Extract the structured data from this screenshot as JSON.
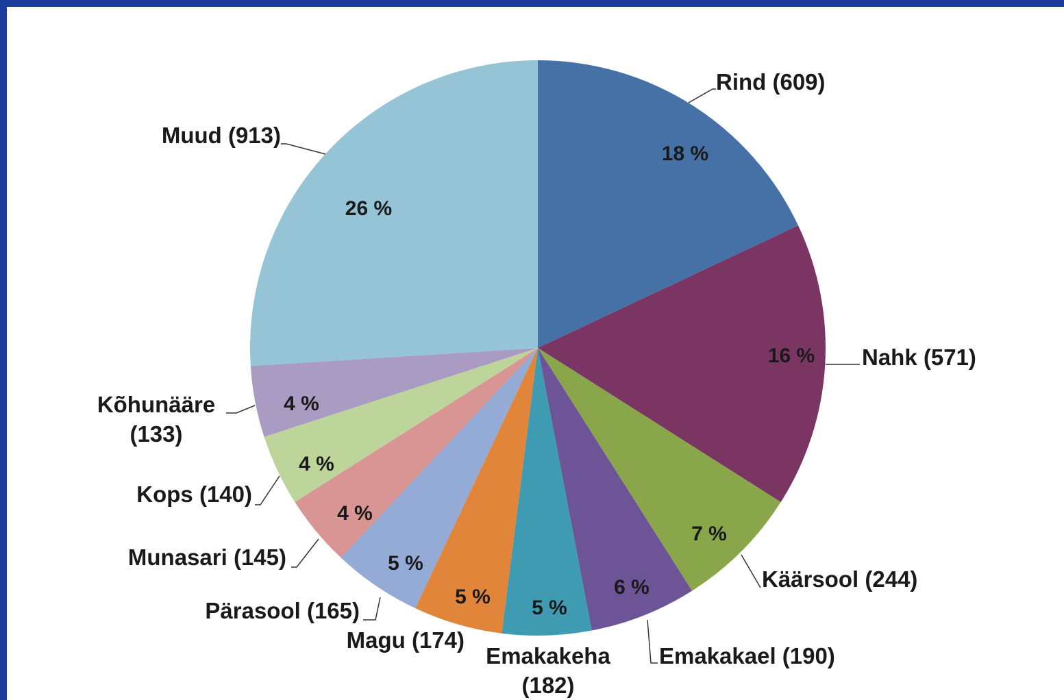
{
  "chart_data": {
    "type": "pie",
    "categories": [
      "Rind (609)",
      "Nahk (571)",
      "Käärsool (244)",
      "Emakakael (190)",
      "Emakakeha\n(182)",
      "Magu (174)",
      "Pärasool (165)",
      "Munasari (145)",
      "Kops (140)",
      "Kõhunääre\n(133)",
      "Muud (913)"
    ],
    "values": [
      18,
      16,
      7,
      6,
      5,
      5,
      5,
      4,
      4,
      4,
      26
    ],
    "value_labels": [
      "18 %",
      "16 %",
      "7 %",
      "6 %",
      "5 %",
      "5 %",
      "5 %",
      "4 %",
      "4 %",
      "4 %",
      "26 %"
    ],
    "colors": [
      "#4571a6",
      "#7a3562",
      "#8aa64b",
      "#6c5496",
      "#3f9bb1",
      "#e0853a",
      "#94abd5",
      "#d89594",
      "#bdd49b",
      "#a99bc2",
      "#94c4d6"
    ]
  }
}
